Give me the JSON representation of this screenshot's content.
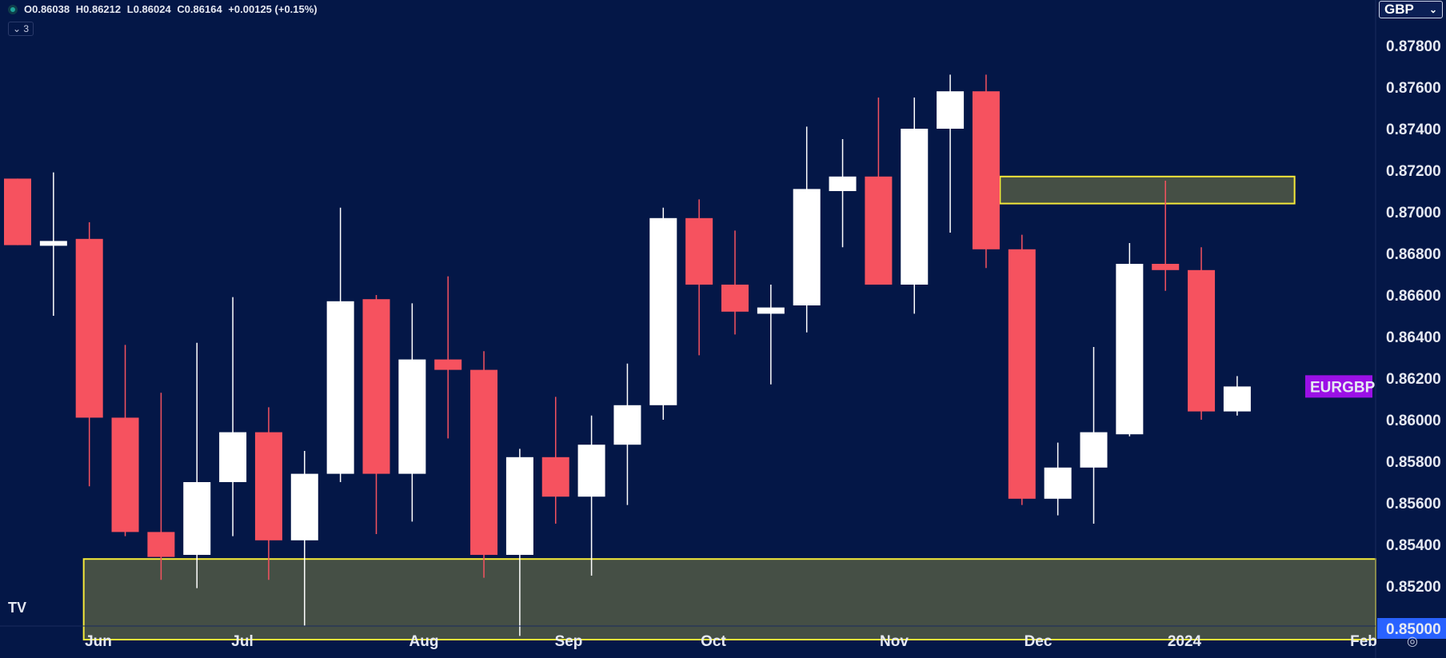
{
  "header": {
    "open": "O0.86038",
    "high": "H0.86212",
    "low": "L0.86024",
    "close": "C0.86164",
    "change": "+0.00125 (+0.15%)",
    "indicators_count": "3"
  },
  "currency_label": "GBP",
  "symbol_label": "EURGBP",
  "colors": {
    "background": "#041747",
    "up": "#ffffff",
    "down": "#f6525f",
    "zone_fill": "#454f45",
    "zone_border": "#f5e93a",
    "symbol_badge": "#9b10e6",
    "price_badge": "#2962ff"
  },
  "chart_data": {
    "type": "candlestick",
    "timeframe": "weekly",
    "ylim": [
      0.85,
      0.879
    ],
    "y_ticks": [
      "0.87800",
      "0.87600",
      "0.87400",
      "0.87200",
      "0.87000",
      "0.86800",
      "0.86600",
      "0.86400",
      "0.86200",
      "0.86000",
      "0.85800",
      "0.85600",
      "0.85400",
      "0.85200"
    ],
    "current_price_tick": "0.85000",
    "x_labels": [
      "Jun",
      "Jul",
      "Aug",
      "Sep",
      "Oct",
      "Nov",
      "Dec",
      "2024",
      "Feb"
    ],
    "candles": [
      {
        "o": 0.8716,
        "h": 0.8716,
        "l": 0.8684,
        "c": 0.8684
      },
      {
        "o": 0.8684,
        "h": 0.8719,
        "l": 0.865,
        "c": 0.8686
      },
      {
        "o": 0.8687,
        "h": 0.8695,
        "l": 0.8568,
        "c": 0.8601
      },
      {
        "o": 0.8601,
        "h": 0.8636,
        "l": 0.8544,
        "c": 0.8546
      },
      {
        "o": 0.8546,
        "h": 0.8613,
        "l": 0.8523,
        "c": 0.8534
      },
      {
        "o": 0.8535,
        "h": 0.8637,
        "l": 0.8519,
        "c": 0.857
      },
      {
        "o": 0.857,
        "h": 0.8659,
        "l": 0.8544,
        "c": 0.8594
      },
      {
        "o": 0.8594,
        "h": 0.8606,
        "l": 0.8523,
        "c": 0.8542
      },
      {
        "o": 0.8542,
        "h": 0.8585,
        "l": 0.8501,
        "c": 0.8574
      },
      {
        "o": 0.8574,
        "h": 0.8702,
        "l": 0.857,
        "c": 0.8657
      },
      {
        "o": 0.8658,
        "h": 0.866,
        "l": 0.8545,
        "c": 0.8574
      },
      {
        "o": 0.8574,
        "h": 0.8656,
        "l": 0.8551,
        "c": 0.8629
      },
      {
        "o": 0.8629,
        "h": 0.8669,
        "l": 0.8591,
        "c": 0.8624
      },
      {
        "o": 0.8624,
        "h": 0.8633,
        "l": 0.8524,
        "c": 0.8535
      },
      {
        "o": 0.8535,
        "h": 0.8586,
        "l": 0.8496,
        "c": 0.8582
      },
      {
        "o": 0.8582,
        "h": 0.8611,
        "l": 0.855,
        "c": 0.8563
      },
      {
        "o": 0.8563,
        "h": 0.8602,
        "l": 0.8525,
        "c": 0.8588
      },
      {
        "o": 0.8588,
        "h": 0.8627,
        "l": 0.8559,
        "c": 0.8607
      },
      {
        "o": 0.8607,
        "h": 0.8702,
        "l": 0.86,
        "c": 0.8697
      },
      {
        "o": 0.8697,
        "h": 0.8706,
        "l": 0.8631,
        "c": 0.8665
      },
      {
        "o": 0.8665,
        "h": 0.8691,
        "l": 0.8641,
        "c": 0.8652
      },
      {
        "o": 0.8651,
        "h": 0.8665,
        "l": 0.8617,
        "c": 0.8654
      },
      {
        "o": 0.8655,
        "h": 0.8741,
        "l": 0.8642,
        "c": 0.8711
      },
      {
        "o": 0.871,
        "h": 0.8735,
        "l": 0.8683,
        "c": 0.8717
      },
      {
        "o": 0.8717,
        "h": 0.8755,
        "l": 0.8665,
        "c": 0.8665
      },
      {
        "o": 0.8665,
        "h": 0.8755,
        "l": 0.8651,
        "c": 0.874
      },
      {
        "o": 0.874,
        "h": 0.8766,
        "l": 0.869,
        "c": 0.8758
      },
      {
        "o": 0.8758,
        "h": 0.8766,
        "l": 0.8673,
        "c": 0.8682
      },
      {
        "o": 0.8682,
        "h": 0.8689,
        "l": 0.8559,
        "c": 0.8562
      },
      {
        "o": 0.8562,
        "h": 0.8589,
        "l": 0.8554,
        "c": 0.8577
      },
      {
        "o": 0.8577,
        "h": 0.8635,
        "l": 0.855,
        "c": 0.8594
      },
      {
        "o": 0.8593,
        "h": 0.8685,
        "l": 0.8592,
        "c": 0.8675
      },
      {
        "o": 0.8675,
        "h": 0.8715,
        "l": 0.8662,
        "c": 0.8672
      },
      {
        "o": 0.8672,
        "h": 0.8683,
        "l": 0.86,
        "c": 0.8604
      },
      {
        "o": 0.8604,
        "h": 0.8621,
        "l": 0.8602,
        "c": 0.8616
      }
    ],
    "zones": [
      {
        "from_candle": 2.2,
        "to_price_top": 0.8533,
        "to_price_bottom": 0.85,
        "extends_right": true
      },
      {
        "from_candle": 27.5,
        "to_candle": 35.6,
        "price_top": 0.8717,
        "price_bottom": 0.8704
      }
    ]
  }
}
